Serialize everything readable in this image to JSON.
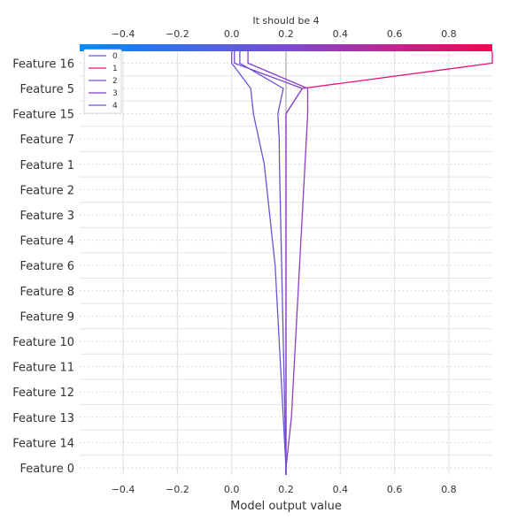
{
  "chart_data": {
    "type": "line",
    "title": "It should be 4",
    "xlabel": "Model output value",
    "ylabel": "",
    "xlim": [
      -0.56,
      0.96
    ],
    "base_value": 0.2,
    "grid": true,
    "legend_position": "top-left",
    "xticks": [
      -0.4,
      -0.2,
      0.0,
      0.2,
      0.4,
      0.6,
      0.8
    ],
    "xtick_labels": [
      "−0.4",
      "−0.2",
      "0.0",
      "0.2",
      "0.4",
      "0.6",
      "0.8"
    ],
    "colorbar": {
      "stops": [
        "#008bfb",
        "#7a4cd1",
        "#ff0052"
      ]
    },
    "features": [
      "Feature 0",
      "Feature 14",
      "Feature 13",
      "Feature 12",
      "Feature 11",
      "Feature 10",
      "Feature 9",
      "Feature 8",
      "Feature 6",
      "Feature 4",
      "Feature 3",
      "Feature 2",
      "Feature 1",
      "Feature 7",
      "Feature 15",
      "Feature 5",
      "Feature 16"
    ],
    "series": [
      {
        "name": "0",
        "color": "#6a54d8",
        "values": [
          0.2,
          0.195,
          0.19,
          0.185,
          0.18,
          0.175,
          0.17,
          0.165,
          0.16,
          0.15,
          0.14,
          0.13,
          0.12,
          0.1,
          0.08,
          0.07,
          0.0
        ]
      },
      {
        "name": "1",
        "color": "#e6107e",
        "values": [
          0.2,
          0.2,
          0.2,
          0.2,
          0.2,
          0.2,
          0.2,
          0.2,
          0.2,
          0.2,
          0.2,
          0.2,
          0.2,
          0.2,
          0.2,
          0.26,
          0.96
        ]
      },
      {
        "name": "2",
        "color": "#7a4cd1",
        "values": [
          0.2,
          0.2,
          0.2,
          0.2,
          0.2,
          0.2,
          0.2,
          0.2,
          0.2,
          0.2,
          0.2,
          0.2,
          0.2,
          0.2,
          0.2,
          0.26,
          0.01
        ]
      },
      {
        "name": "3",
        "color": "#8a3fc8",
        "values": [
          0.2,
          0.21,
          0.22,
          0.225,
          0.23,
          0.235,
          0.24,
          0.245,
          0.25,
          0.255,
          0.26,
          0.265,
          0.27,
          0.275,
          0.28,
          0.28,
          0.06
        ]
      },
      {
        "name": "4",
        "color": "#6e4fd6",
        "values": [
          0.2,
          0.198,
          0.196,
          0.194,
          0.192,
          0.19,
          0.188,
          0.186,
          0.184,
          0.182,
          0.18,
          0.178,
          0.176,
          0.175,
          0.17,
          0.19,
          0.03
        ]
      }
    ]
  }
}
